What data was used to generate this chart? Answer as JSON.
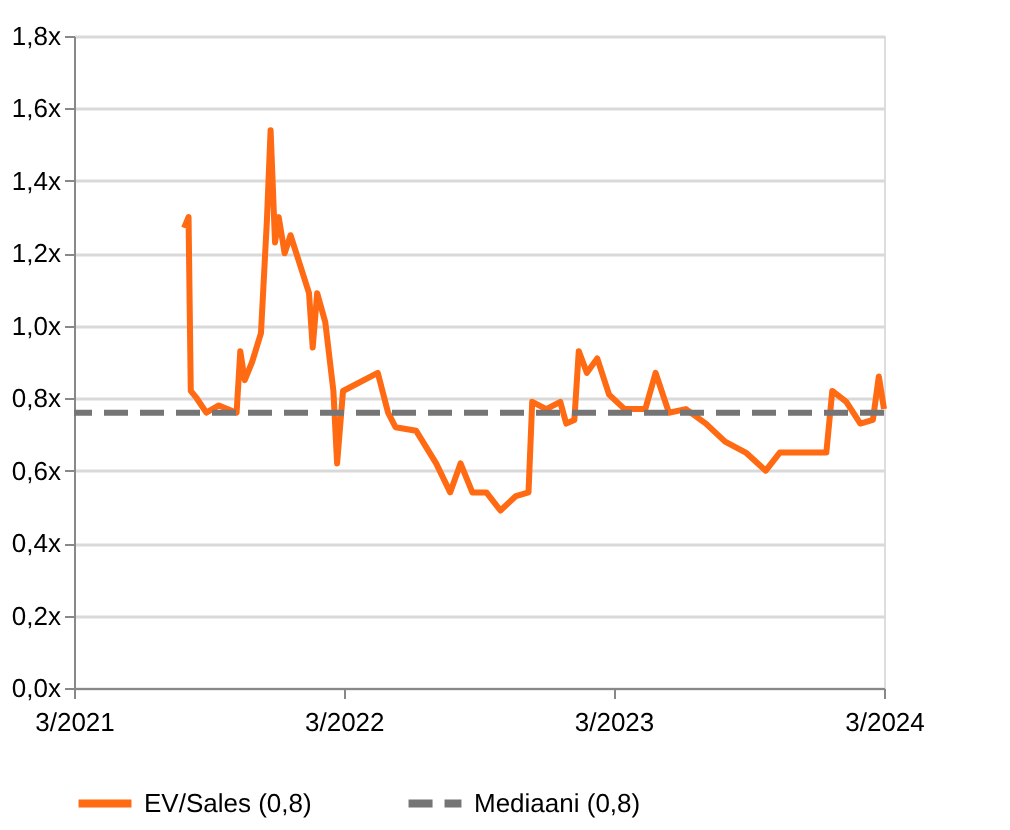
{
  "chart_data": {
    "type": "line",
    "xlim": [
      "2021-03-01",
      "2024-03-01"
    ],
    "xticks": [
      {
        "value": "2021-03-01",
        "label": "3/2021"
      },
      {
        "value": "2022-03-01",
        "label": "3/2022"
      },
      {
        "value": "2023-03-01",
        "label": "3/2023"
      },
      {
        "value": "2024-03-01",
        "label": "3/2024"
      }
    ],
    "ylim": [
      0,
      1.8
    ],
    "yticks": [
      {
        "value": 0,
        "label": "0,0x"
      },
      {
        "value": 0.2,
        "label": "0,2x"
      },
      {
        "value": 0.4,
        "label": "0,4x"
      },
      {
        "value": 0.6,
        "label": "0,6x"
      },
      {
        "value": 0.8,
        "label": "0,8x"
      },
      {
        "value": 1.0,
        "label": "1,0x"
      },
      {
        "value": 1.2,
        "label": "1,2x"
      },
      {
        "value": 1.4,
        "label": "1,4x"
      },
      {
        "value": 1.6,
        "label": "1,6x"
      },
      {
        "value": 1.8,
        "label": "1,8x"
      }
    ],
    "grid": "y",
    "legend": "bottom",
    "marker": "none",
    "line_style": "solid",
    "series": [
      {
        "name": "EV/Sales (0,8)",
        "color": "#ff6a13",
        "x": [
          "2021-07-28",
          "2021-08-03",
          "2021-08-06",
          "2021-08-14",
          "2021-08-27",
          "2021-09-13",
          "2021-10-07",
          "2021-10-12",
          "2021-10-18",
          "2021-10-28",
          "2021-11-09",
          "2021-11-17",
          "2021-11-22",
          "2021-11-28",
          "2021-12-03",
          "2021-12-11",
          "2021-12-19",
          "2021-12-30",
          "2022-01-13",
          "2022-01-18",
          "2022-01-24",
          "2022-02-04",
          "2022-02-15",
          "2022-02-20",
          "2022-02-28",
          "2022-04-16",
          "2022-04-30",
          "2022-05-10",
          "2022-06-07",
          "2022-07-04",
          "2022-07-23",
          "2022-08-06",
          "2022-08-22",
          "2022-09-10",
          "2022-09-29",
          "2022-10-20",
          "2022-11-06",
          "2022-11-11",
          "2022-11-30",
          "2022-12-19",
          "2022-12-27",
          "2023-01-07",
          "2023-01-13",
          "2023-01-24",
          "2023-02-07",
          "2023-02-23",
          "2023-03-16",
          "2023-04-13",
          "2023-04-27",
          "2023-05-15",
          "2023-06-07",
          "2023-07-04",
          "2023-07-30",
          "2023-08-27",
          "2023-09-23",
          "2023-10-12",
          "2023-11-17",
          "2023-12-14",
          "2023-12-22",
          "2024-01-10",
          "2024-01-29",
          "2024-02-15",
          "2024-02-23",
          "2024-03-01"
        ],
        "values": [
          1.27,
          1.3,
          0.82,
          0.8,
          0.76,
          0.78,
          0.76,
          0.93,
          0.85,
          0.9,
          0.98,
          1.29,
          1.54,
          1.23,
          1.3,
          1.2,
          1.25,
          1.18,
          1.09,
          0.94,
          1.09,
          1.01,
          0.82,
          0.62,
          0.82,
          0.87,
          0.76,
          0.72,
          0.71,
          0.62,
          0.54,
          0.62,
          0.54,
          0.54,
          0.49,
          0.53,
          0.54,
          0.79,
          0.77,
          0.79,
          0.73,
          0.74,
          0.93,
          0.87,
          0.91,
          0.81,
          0.77,
          0.77,
          0.87,
          0.76,
          0.77,
          0.73,
          0.68,
          0.65,
          0.6,
          0.65,
          0.65,
          0.65,
          0.82,
          0.79,
          0.73,
          0.74,
          0.86,
          0.77
        ]
      }
    ],
    "ref_lines": [
      {
        "axis": "y",
        "value": 0.76,
        "label": "Mediaani (0,8)",
        "color": "#757575",
        "line_style": "dashed"
      }
    ]
  }
}
